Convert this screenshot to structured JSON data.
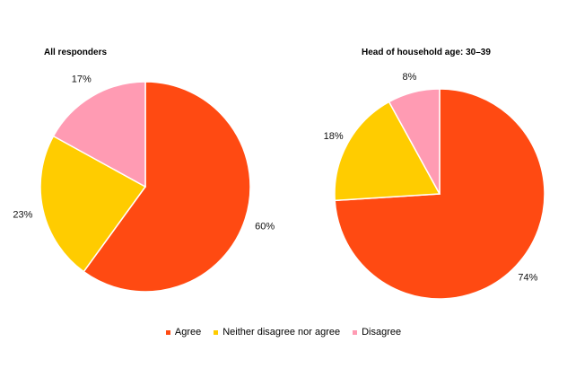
{
  "chart_data": [
    {
      "type": "pie",
      "title": "All responders",
      "categories": [
        "Agree",
        "Neither disagree nor agree",
        "Disagree"
      ],
      "values": [
        60,
        23,
        17
      ],
      "labels": [
        "60%",
        "23%",
        "17%"
      ],
      "colors": [
        "#FF4A12",
        "#FFCC00",
        "#FF9BB3"
      ],
      "start_angle": "12 o'clock, clockwise",
      "legend_position": "bottom"
    },
    {
      "type": "pie",
      "title": "Head of household age: 30–39",
      "categories": [
        "Agree",
        "Neither disagree nor agree",
        "Disagree"
      ],
      "values": [
        74,
        18,
        8
      ],
      "labels": [
        "74%",
        "18%",
        "8%"
      ],
      "colors": [
        "#FF4A12",
        "#FFCC00",
        "#FF9BB3"
      ],
      "start_angle": "12 o'clock, clockwise",
      "legend_position": "bottom"
    }
  ],
  "titles": {
    "left": "All responders",
    "right": "Head of household age: 30–39"
  },
  "legend": [
    {
      "label": "Agree",
      "color": "#FF4A12"
    },
    {
      "label": "Neither disagree nor agree",
      "color": "#FFCC00"
    },
    {
      "label": "Disagree",
      "color": "#FF9BB3"
    }
  ]
}
